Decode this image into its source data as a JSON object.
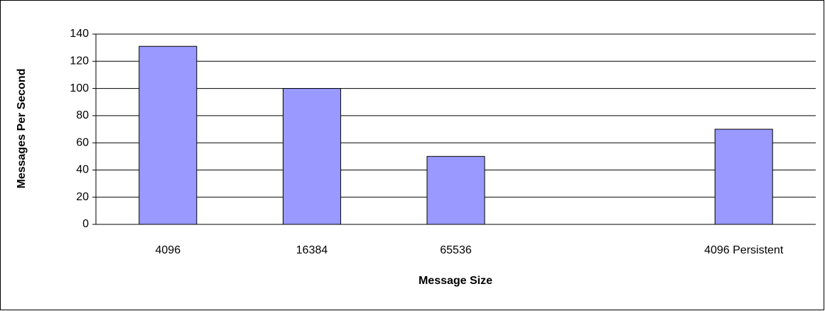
{
  "chart_data": {
    "type": "bar",
    "x_label": "Message Size",
    "y_label": "Messages Per Second",
    "categories": [
      "4096",
      "16384",
      "65536",
      null,
      "4096 Persistent"
    ],
    "values": [
      131,
      100,
      50,
      null,
      70
    ],
    "color": "#9999ff",
    "ylim": [
      0,
      140
    ],
    "yticks": [
      0,
      20,
      40,
      60,
      80,
      100,
      120,
      140
    ],
    "grid": true
  }
}
